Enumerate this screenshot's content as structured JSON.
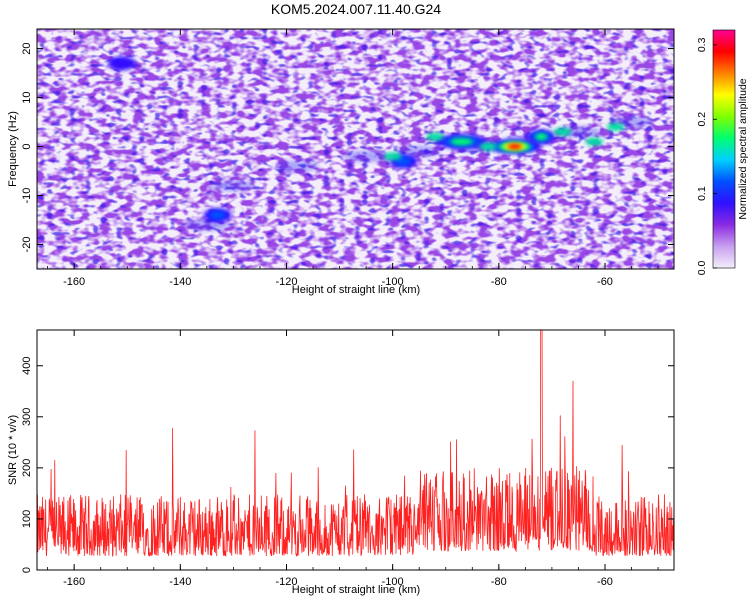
{
  "chart_data": [
    {
      "type": "heatmap",
      "title": "KOM5.2024.007.11.40.G24",
      "xlabel": "Height of straight line (km)",
      "ylabel": "Frequency (Hz)",
      "xlim": [
        -167,
        -47
      ],
      "ylim": [
        -25,
        24
      ],
      "x_ticks": [
        -160,
        -140,
        -120,
        -100,
        -80,
        -60
      ],
      "y_ticks": [
        -20,
        -10,
        0,
        10,
        20
      ],
      "colorbar": {
        "label": "Normalized spectral amplitude",
        "range": [
          0.0,
          0.32
        ],
        "ticks": [
          0.0,
          0.1,
          0.2,
          0.3
        ],
        "colors": [
          "#f4eefb",
          "#c8a0f0",
          "#8a2be2",
          "#3010ff",
          "#0050ff",
          "#00d0ff",
          "#00ff70",
          "#80ff00",
          "#ffff00",
          "#ff8000",
          "#ff0000",
          "#ff0090"
        ]
      },
      "features": [
        {
          "x": -77,
          "y": 0,
          "value": 0.3
        },
        {
          "x": -87,
          "y": 1,
          "value": 0.22
        },
        {
          "x": -72,
          "y": 2,
          "value": 0.2
        },
        {
          "x": -98,
          "y": -3,
          "value": 0.15
        },
        {
          "x": -133,
          "y": -14,
          "value": 0.15
        },
        {
          "x": -151,
          "y": 17,
          "value": 0.12
        }
      ]
    },
    {
      "type": "line",
      "xlabel": "Height of straight line (km)",
      "ylabel": "SNR (10 * v/v)",
      "xlim": [
        -167,
        -47
      ],
      "ylim": [
        0,
        470
      ],
      "x_ticks": [
        -160,
        -140,
        -120,
        -100,
        -80,
        -60
      ],
      "y_ticks": [
        0,
        100,
        200,
        300,
        400
      ],
      "color": "#ff2020",
      "series_summary": {
        "typical_min": 20,
        "typical_mean": 110,
        "max": 470,
        "max_at_x": -72
      }
    }
  ]
}
